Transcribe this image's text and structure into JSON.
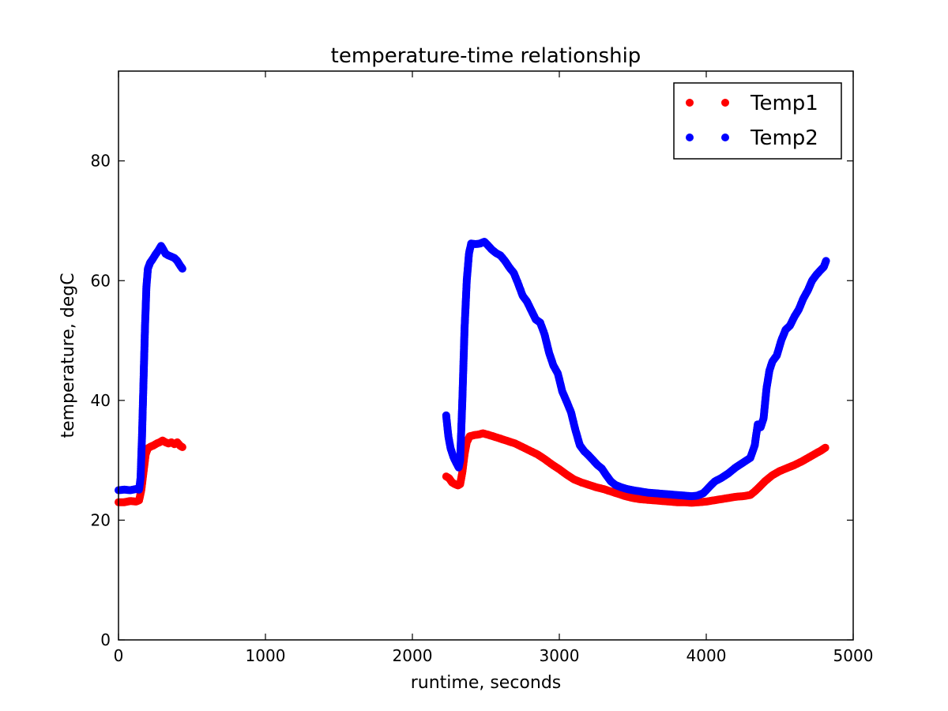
{
  "chart_data": {
    "type": "scatter",
    "title": "temperature-time relationship",
    "xlabel": "runtime, seconds",
    "ylabel": "temperature, degC",
    "xlim": [
      0,
      5000
    ],
    "ylim": [
      0,
      95
    ],
    "xticks": [
      0,
      1000,
      2000,
      3000,
      4000,
      5000
    ],
    "yticks": [
      0,
      20,
      40,
      60,
      80
    ],
    "grid": false,
    "legend_position": "top-right",
    "series": [
      {
        "name": "Temp1",
        "color": "#ff0000",
        "marker": "circle",
        "segments": [
          [
            [
              0,
              23
            ],
            [
              40,
              23
            ],
            [
              80,
              23.2
            ],
            [
              120,
              23.1
            ],
            [
              140,
              23.3
            ],
            [
              155,
              25
            ],
            [
              170,
              28
            ],
            [
              185,
              31
            ],
            [
              200,
              32
            ],
            [
              220,
              32.3
            ],
            [
              240,
              32.5
            ],
            [
              260,
              32.8
            ],
            [
              280,
              33
            ],
            [
              300,
              33.3
            ],
            [
              320,
              33
            ],
            [
              340,
              32.8
            ],
            [
              360,
              33
            ],
            [
              380,
              32.7
            ],
            [
              400,
              33
            ],
            [
              420,
              32.4
            ],
            [
              435,
              32.2
            ]
          ],
          [
            [
              2230,
              27.3
            ],
            [
              2250,
              27
            ],
            [
              2270,
              26.3
            ],
            [
              2290,
              26
            ],
            [
              2310,
              25.8
            ],
            [
              2325,
              26
            ],
            [
              2340,
              28
            ],
            [
              2355,
              31
            ],
            [
              2370,
              33
            ],
            [
              2390,
              34
            ],
            [
              2420,
              34.2
            ],
            [
              2450,
              34.3
            ],
            [
              2480,
              34.5
            ],
            [
              2510,
              34.3
            ],
            [
              2550,
              34
            ],
            [
              2600,
              33.6
            ],
            [
              2650,
              33.2
            ],
            [
              2700,
              32.8
            ],
            [
              2750,
              32.2
            ],
            [
              2800,
              31.6
            ],
            [
              2850,
              31
            ],
            [
              2900,
              30.2
            ],
            [
              2950,
              29.3
            ],
            [
              3000,
              28.5
            ],
            [
              3050,
              27.6
            ],
            [
              3100,
              26.8
            ],
            [
              3150,
              26.3
            ],
            [
              3200,
              25.9
            ],
            [
              3250,
              25.5
            ],
            [
              3300,
              25.2
            ],
            [
              3350,
              24.8
            ],
            [
              3400,
              24.4
            ],
            [
              3450,
              24
            ],
            [
              3500,
              23.7
            ],
            [
              3550,
              23.5
            ],
            [
              3600,
              23.4
            ],
            [
              3650,
              23.3
            ],
            [
              3700,
              23.2
            ],
            [
              3750,
              23.1
            ],
            [
              3800,
              23
            ],
            [
              3850,
              23
            ],
            [
              3900,
              22.9
            ],
            [
              3950,
              23
            ],
            [
              4000,
              23.1
            ],
            [
              4050,
              23.3
            ],
            [
              4100,
              23.5
            ],
            [
              4150,
              23.7
            ],
            [
              4200,
              23.9
            ],
            [
              4250,
              24
            ],
            [
              4300,
              24.2
            ],
            [
              4330,
              24.8
            ],
            [
              4360,
              25.5
            ],
            [
              4400,
              26.5
            ],
            [
              4450,
              27.5
            ],
            [
              4500,
              28.2
            ],
            [
              4550,
              28.7
            ],
            [
              4600,
              29.2
            ],
            [
              4650,
              29.8
            ],
            [
              4700,
              30.5
            ],
            [
              4750,
              31.2
            ],
            [
              4780,
              31.6
            ],
            [
              4810,
              32.1
            ]
          ]
        ]
      },
      {
        "name": "Temp2",
        "color": "#0000ff",
        "marker": "circle",
        "segments": [
          [
            [
              0,
              25
            ],
            [
              40,
              25.1
            ],
            [
              80,
              25
            ],
            [
              120,
              25.2
            ],
            [
              140,
              25.1
            ],
            [
              150,
              27
            ],
            [
              160,
              34
            ],
            [
              170,
              43
            ],
            [
              180,
              52
            ],
            [
              190,
              59
            ],
            [
              200,
              62
            ],
            [
              215,
              63
            ],
            [
              230,
              63.5
            ],
            [
              250,
              64.3
            ],
            [
              270,
              65
            ],
            [
              290,
              65.8
            ],
            [
              305,
              65.2
            ],
            [
              320,
              64.5
            ],
            [
              340,
              64.2
            ],
            [
              360,
              64
            ],
            [
              380,
              63.8
            ],
            [
              400,
              63.3
            ],
            [
              420,
              62.5
            ],
            [
              435,
              62
            ]
          ],
          [
            [
              2230,
              37.5
            ],
            [
              2245,
              34
            ],
            [
              2260,
              32
            ],
            [
              2280,
              30.5
            ],
            [
              2300,
              29.5
            ],
            [
              2315,
              28.8
            ],
            [
              2325,
              30
            ],
            [
              2340,
              40
            ],
            [
              2355,
              52
            ],
            [
              2370,
              60
            ],
            [
              2385,
              64.5
            ],
            [
              2400,
              66.2
            ],
            [
              2430,
              66.1
            ],
            [
              2460,
              66.2
            ],
            [
              2490,
              66.5
            ],
            [
              2510,
              66
            ],
            [
              2540,
              65.2
            ],
            [
              2570,
              64.6
            ],
            [
              2600,
              64.2
            ],
            [
              2630,
              63.3
            ],
            [
              2660,
              62.2
            ],
            [
              2690,
              61.3
            ],
            [
              2720,
              59.5
            ],
            [
              2750,
              57.5
            ],
            [
              2780,
              56.5
            ],
            [
              2810,
              55
            ],
            [
              2840,
              53.5
            ],
            [
              2870,
              53
            ],
            [
              2900,
              51
            ],
            [
              2930,
              48
            ],
            [
              2960,
              45.8
            ],
            [
              2990,
              44.5
            ],
            [
              3020,
              41.5
            ],
            [
              3050,
              39.8
            ],
            [
              3080,
              38
            ],
            [
              3110,
              35
            ],
            [
              3140,
              32.5
            ],
            [
              3170,
              31.5
            ],
            [
              3200,
              30.8
            ],
            [
              3230,
              30
            ],
            [
              3260,
              29.2
            ],
            [
              3290,
              28.6
            ],
            [
              3320,
              27.5
            ],
            [
              3350,
              26.5
            ],
            [
              3380,
              25.9
            ],
            [
              3420,
              25.5
            ],
            [
              3460,
              25.2
            ],
            [
              3500,
              25
            ],
            [
              3550,
              24.8
            ],
            [
              3600,
              24.6
            ],
            [
              3650,
              24.5
            ],
            [
              3700,
              24.4
            ],
            [
              3750,
              24.3
            ],
            [
              3800,
              24.2
            ],
            [
              3850,
              24.1
            ],
            [
              3900,
              24
            ],
            [
              3940,
              24.1
            ],
            [
              3980,
              24.5
            ],
            [
              4000,
              25
            ],
            [
              4030,
              25.8
            ],
            [
              4060,
              26.5
            ],
            [
              4100,
              27
            ],
            [
              4150,
              27.8
            ],
            [
              4200,
              28.8
            ],
            [
              4250,
              29.6
            ],
            [
              4300,
              30.4
            ],
            [
              4330,
              32.5
            ],
            [
              4350,
              36
            ],
            [
              4370,
              35.5
            ],
            [
              4390,
              37
            ],
            [
              4410,
              42
            ],
            [
              4430,
              45
            ],
            [
              4450,
              46.5
            ],
            [
              4480,
              47.5
            ],
            [
              4510,
              50
            ],
            [
              4540,
              51.8
            ],
            [
              4570,
              52.5
            ],
            [
              4600,
              54
            ],
            [
              4630,
              55.2
            ],
            [
              4660,
              57
            ],
            [
              4690,
              58.3
            ],
            [
              4720,
              60
            ],
            [
              4750,
              61
            ],
            [
              4780,
              61.8
            ],
            [
              4800,
              62.3
            ],
            [
              4815,
              63.3
            ]
          ]
        ]
      }
    ]
  }
}
